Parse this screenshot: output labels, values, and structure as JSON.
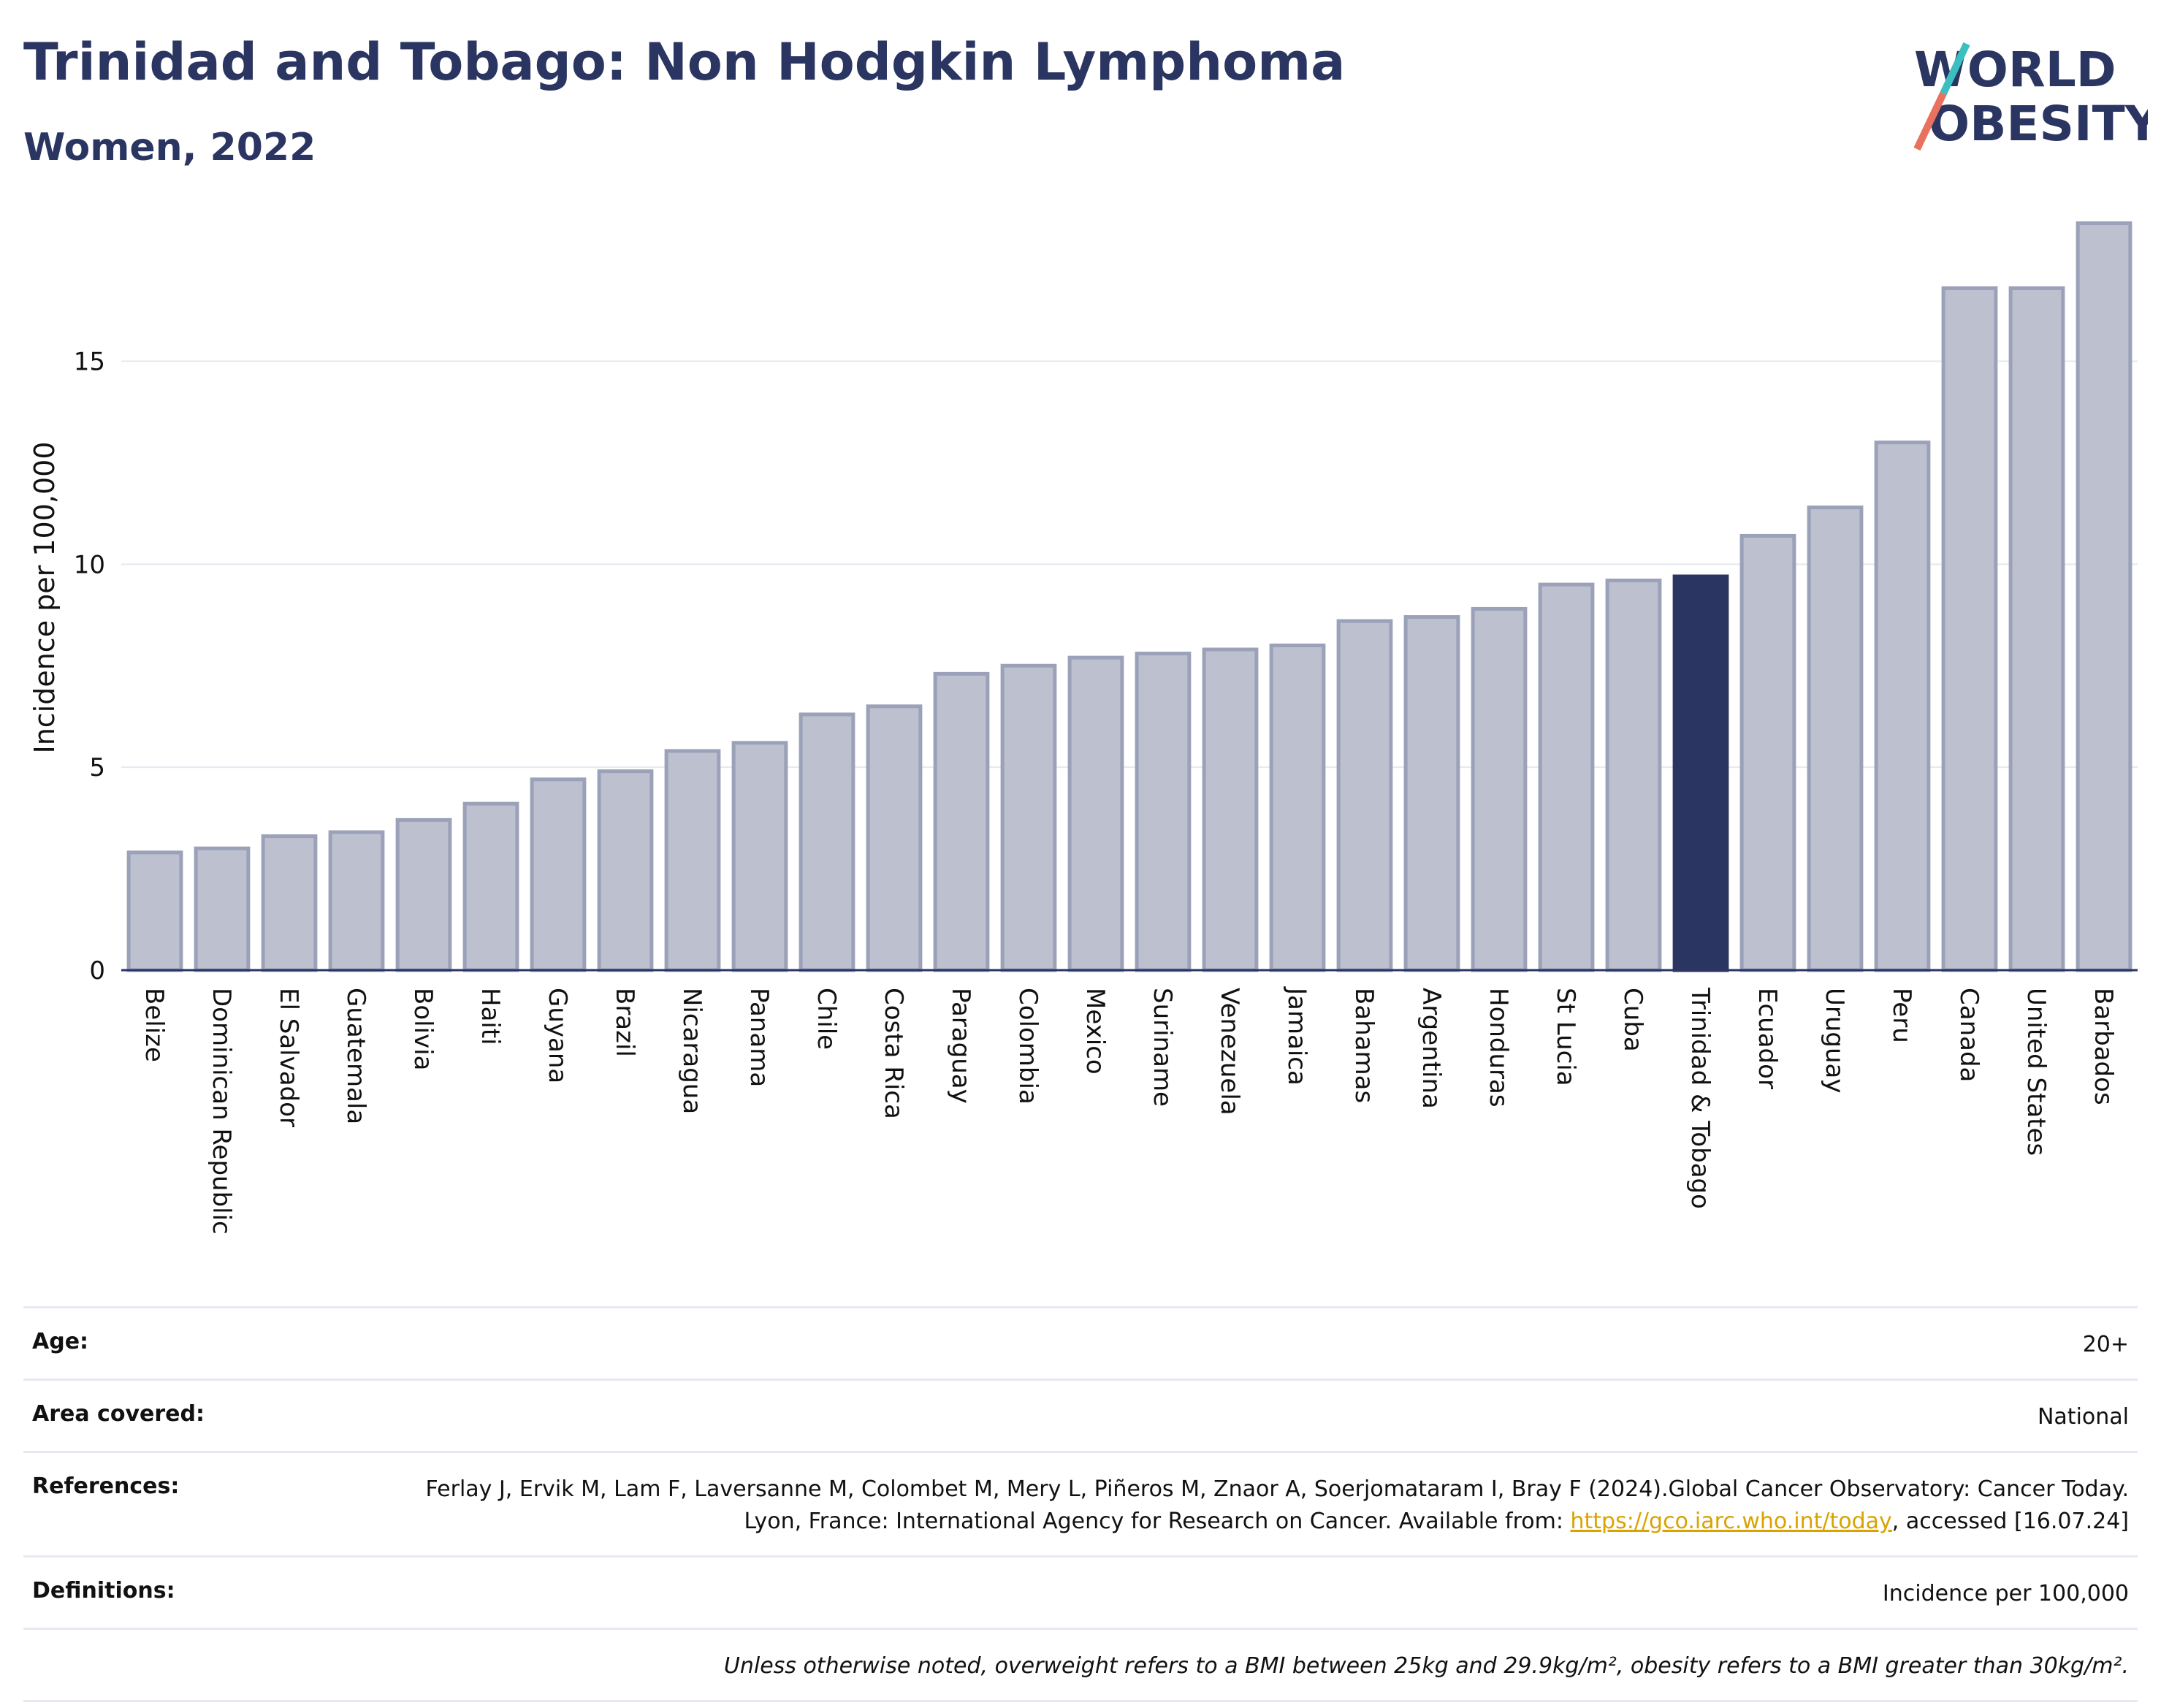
{
  "header": {
    "title": "Trinidad and Tobago: Non Hodgkin Lymphoma",
    "subtitle": "Women, 2022"
  },
  "logo": {
    "line1": "WORLD",
    "line2": "OBESITY"
  },
  "chart_data": {
    "type": "bar",
    "title": "Trinidad and Tobago: Non Hodgkin Lymphoma",
    "subtitle": "Women, 2022",
    "ylabel": "Incidence per 100,000",
    "xlabel": "",
    "ylim": [
      0,
      18.5
    ],
    "yticks": [
      0,
      5,
      10,
      15
    ],
    "grid": true,
    "highlight": "Trinidad & Tobago",
    "colors": {
      "bar": "#bcc0cf",
      "bar_edge": "#9ba1b8",
      "highlight": "#2b3561",
      "grid": "#e6e8f0",
      "axis": "#2b3561"
    },
    "categories": [
      "Belize",
      "Dominican Republic",
      "El Salvador",
      "Guatemala",
      "Bolivia",
      "Haiti",
      "Guyana",
      "Brazil",
      "Nicaragua",
      "Panama",
      "Chile",
      "Costa Rica",
      "Paraguay",
      "Colombia",
      "Mexico",
      "Suriname",
      "Venezuela",
      "Jamaica",
      "Bahamas",
      "Argentina",
      "Honduras",
      "St Lucia",
      "Cuba",
      "Trinidad & Tobago",
      "Ecuador",
      "Uruguay",
      "Peru",
      "Canada",
      "United States",
      "Barbados"
    ],
    "values": [
      2.9,
      3.0,
      3.3,
      3.4,
      3.7,
      4.1,
      4.7,
      4.9,
      5.4,
      5.6,
      6.3,
      6.5,
      7.3,
      7.5,
      7.7,
      7.8,
      7.9,
      8.0,
      8.6,
      8.7,
      8.9,
      9.5,
      9.6,
      9.7,
      10.7,
      11.4,
      13.0,
      16.8,
      16.8,
      18.4
    ]
  },
  "meta": {
    "age_label": "Age:",
    "age_value": "20+",
    "area_label": "Area covered:",
    "area_value": "National",
    "references_label": "References:",
    "references_text": "Ferlay J, Ervik M, Lam F, Laversanne M, Colombet M, Mery L, Piñeros M, Znaor A, Soerjomataram I, Bray F (2024).Global Cancer Observatory: Cancer Today. Lyon, France: International Agency for Research on Cancer. Available from:",
    "references_link": "https://gco.iarc.who.int/today",
    "references_suffix": ", accessed [16.07.24]",
    "definitions_label": "Definitions:",
    "definitions_value": "Incidence per 100,000",
    "note": "Unless otherwise noted, overweight refers to a BMI between 25kg and 29.9kg/m², obesity refers to a BMI greater than 30kg/m²."
  }
}
